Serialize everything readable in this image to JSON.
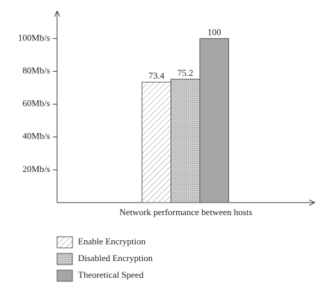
{
  "chart_data": {
    "type": "bar",
    "x_label": "Network performance between hosts",
    "ylim": [
      0,
      115
    ],
    "yticks": [
      {
        "value": 20,
        "label": "20Mb/s"
      },
      {
        "value": 40,
        "label": "40Mb/s"
      },
      {
        "value": 60,
        "label": "60Mb/s"
      },
      {
        "value": 80,
        "label": "80Mb/s"
      },
      {
        "value": 100,
        "label": "100Mb/s"
      }
    ],
    "series": [
      {
        "name": "Enable Encryption",
        "color": "#8c8c8c",
        "fill": "hatch",
        "values": [
          73.4
        ]
      },
      {
        "name": "Disabled Encryption",
        "color": "#8c8c8c",
        "fill": "dots",
        "values": [
          75.2
        ]
      },
      {
        "name": "Theoretical Speed",
        "color": "#a6a6a6",
        "fill": "solid",
        "values": [
          100
        ]
      }
    ]
  }
}
